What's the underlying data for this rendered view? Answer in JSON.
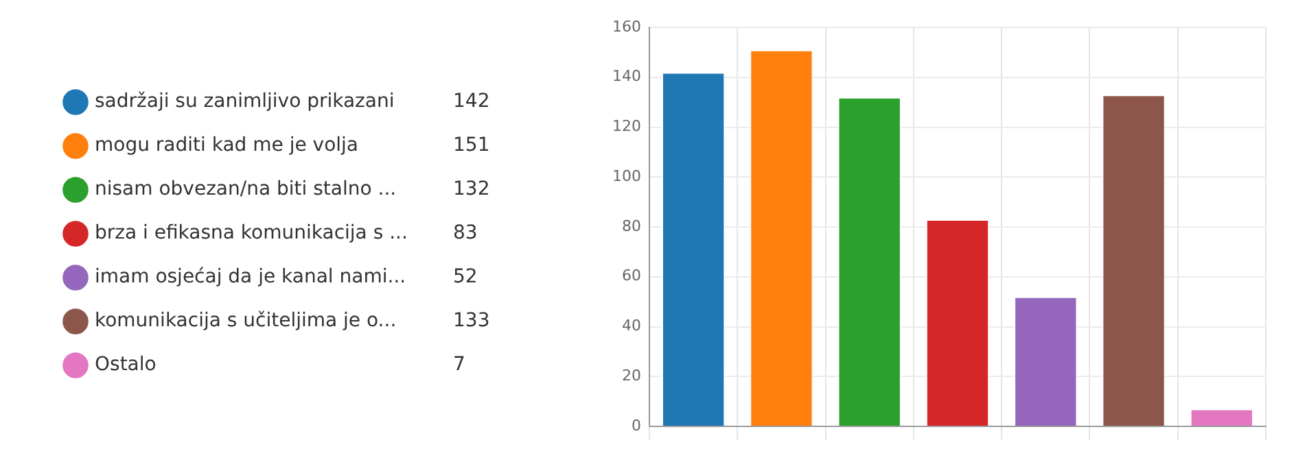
{
  "chart_data": {
    "type": "bar",
    "categories": [
      null,
      null,
      null,
      null,
      null,
      null,
      null
    ],
    "series": [
      {
        "name": "sadržaji su zanimljivo prikazani",
        "color": "#1f77b4",
        "values": [
          142,
          null,
          null,
          null,
          null,
          null,
          null
        ]
      },
      {
        "name": "mogu raditi kad me je volja",
        "color": "#ff7f0e",
        "values": [
          null,
          151,
          null,
          null,
          null,
          null,
          null
        ]
      },
      {
        "name": "nisam obvezan/na biti stalno ...",
        "color": "#2ca02c",
        "values": [
          null,
          null,
          132,
          null,
          null,
          null,
          null
        ]
      },
      {
        "name": "brza i efikasna komunikacija s ...",
        "color": "#d62728",
        "values": [
          null,
          null,
          null,
          83,
          null,
          null,
          null
        ]
      },
      {
        "name": "imam osjećaj da je kanal nami...",
        "color": "#9467bd",
        "values": [
          null,
          null,
          null,
          null,
          52,
          null,
          null
        ]
      },
      {
        "name": "komunikacija s učiteljima je o...",
        "color": "#8c564b",
        "values": [
          null,
          null,
          null,
          null,
          null,
          133,
          null
        ]
      },
      {
        "name": "Ostalo",
        "color": "#e377c2",
        "values": [
          null,
          null,
          null,
          null,
          null,
          null,
          7
        ]
      }
    ],
    "ylim": [
      0,
      160
    ],
    "yticks": [
      0,
      20,
      40,
      60,
      80,
      100,
      120,
      140,
      160
    ],
    "annotations": [
      "142",
      "151",
      "132",
      "83",
      "52",
      "133",
      "7"
    ],
    "grid": true,
    "legend": "left"
  }
}
